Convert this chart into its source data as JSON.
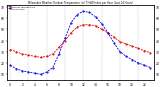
{
  "title": "Milwaukee Weather Outdoor Temperature (vs) THSW Index per Hour (Last 24 Hours)",
  "hours": [
    0,
    1,
    2,
    3,
    4,
    5,
    6,
    7,
    8,
    9,
    10,
    11,
    12,
    13,
    14,
    15,
    16,
    17,
    18,
    19,
    20,
    21,
    22,
    23
  ],
  "temp": [
    32,
    30,
    28,
    27,
    26,
    25,
    26,
    28,
    34,
    40,
    47,
    52,
    54,
    54,
    53,
    50,
    47,
    43,
    39,
    37,
    35,
    33,
    31,
    29
  ],
  "thsw": [
    18,
    15,
    13,
    12,
    11,
    10,
    12,
    16,
    28,
    42,
    56,
    63,
    66,
    65,
    61,
    55,
    47,
    38,
    30,
    26,
    23,
    20,
    18,
    16
  ],
  "temp_color": "#dd0000",
  "thsw_color": "#0000dd",
  "bg_color": "#ffffff",
  "plot_bg": "#ffffff",
  "grid_color": "#999999",
  "ylim_min": 5,
  "ylim_max": 72,
  "yticks": [
    10,
    20,
    30,
    40,
    50,
    60,
    70
  ],
  "legend_temp": "Outdoor Temperature",
  "legend_thsw": "THSW Index",
  "title_color": "#000000"
}
